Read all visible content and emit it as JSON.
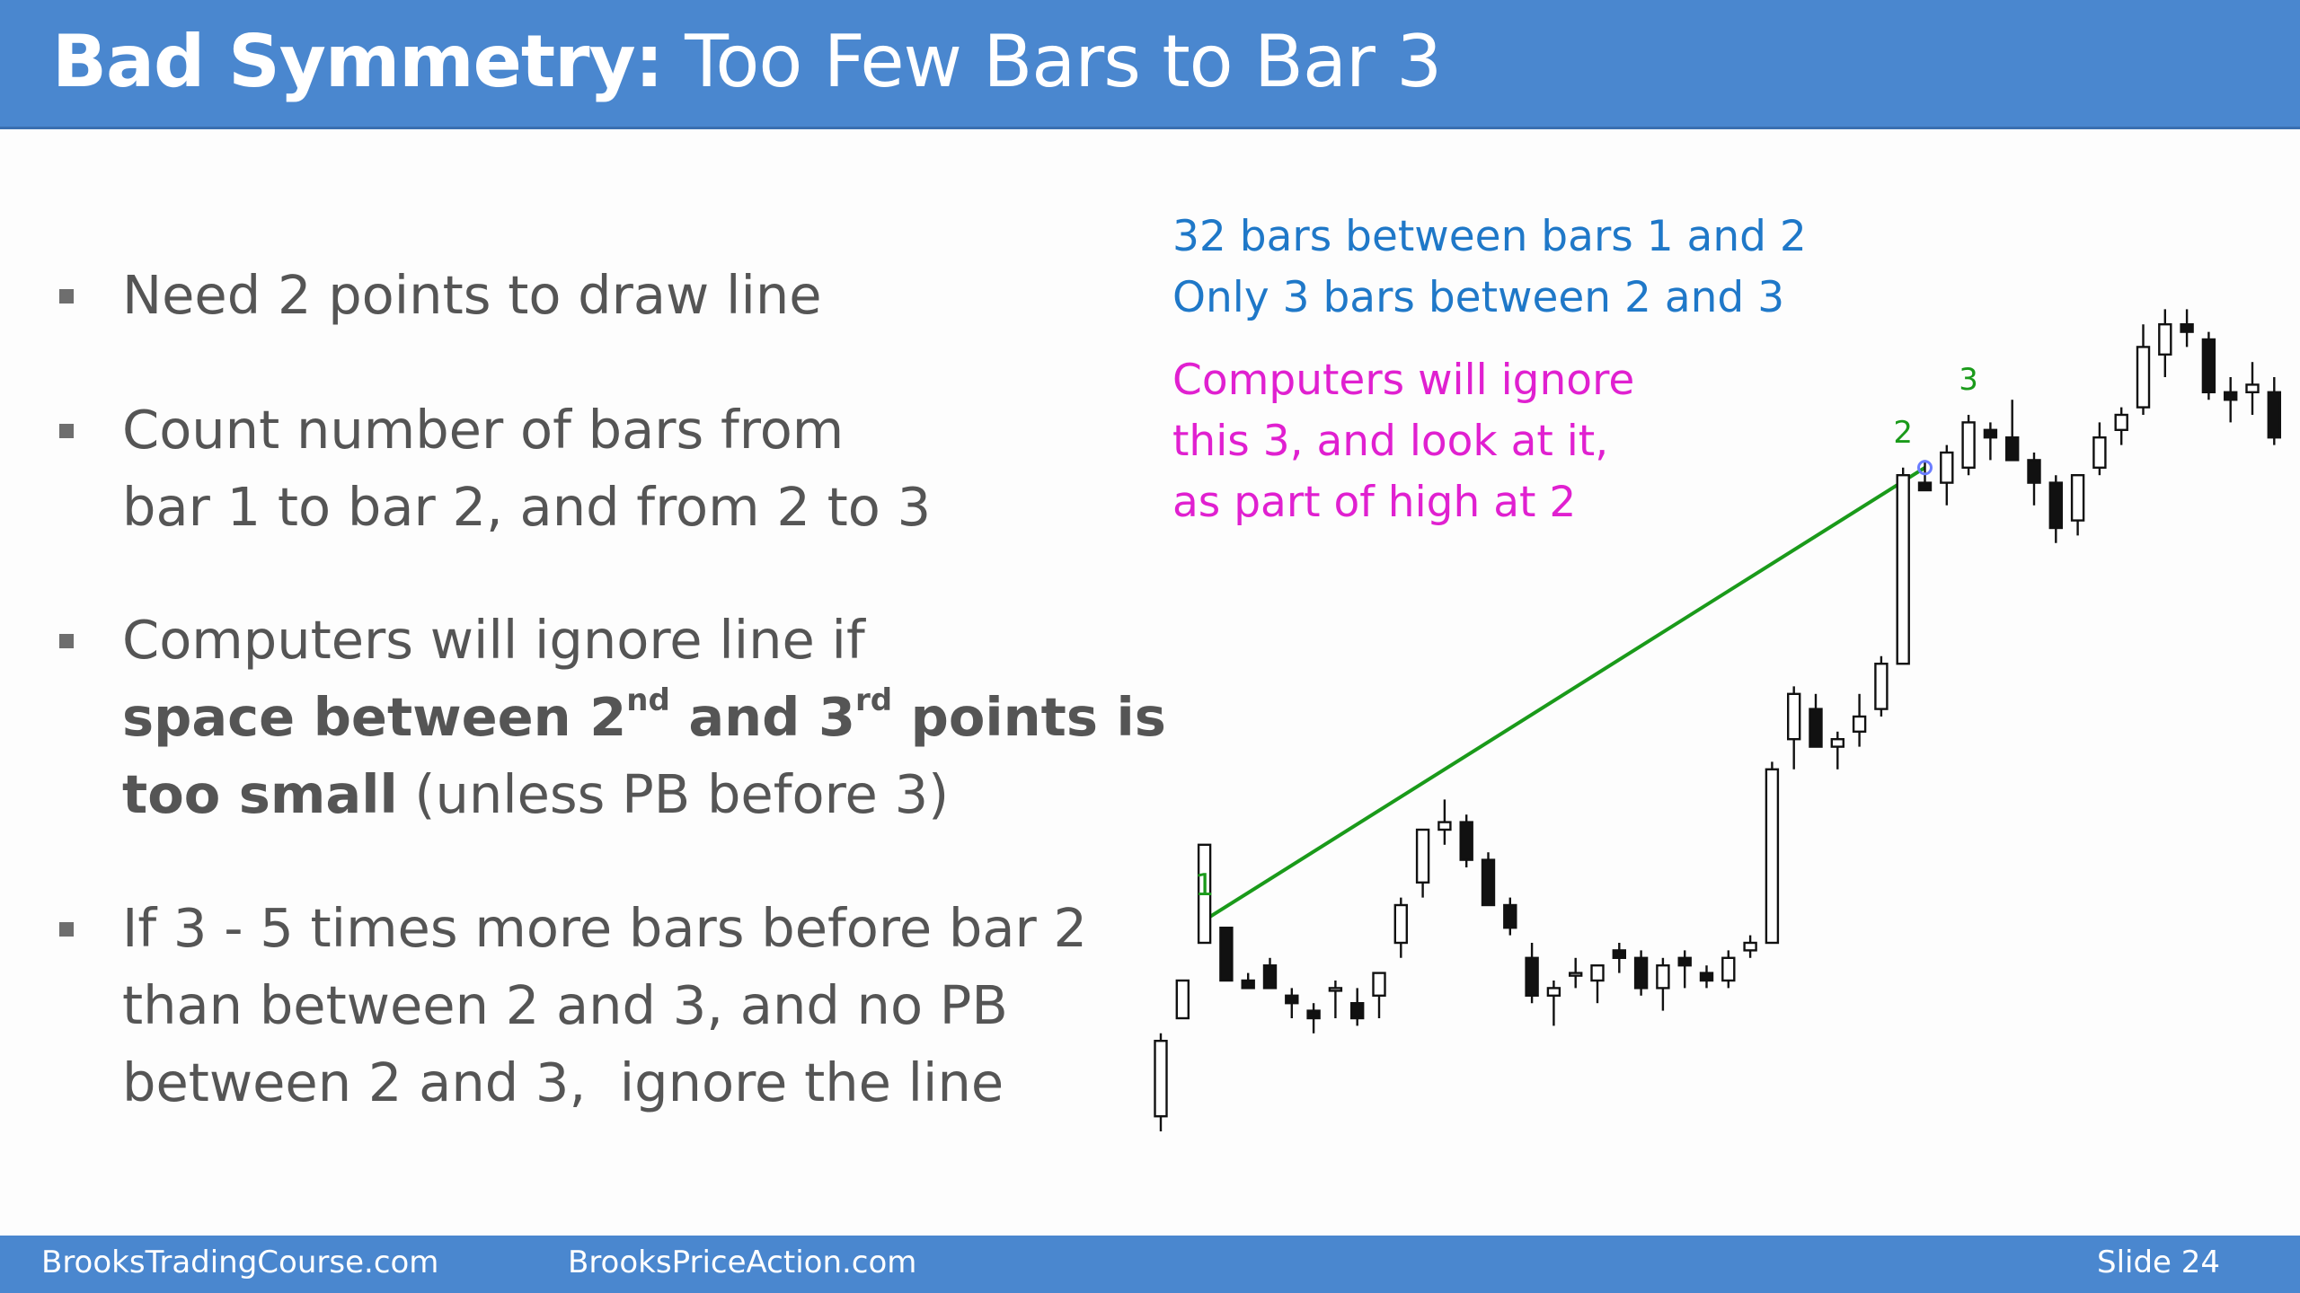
{
  "header": {
    "title_bold": "Bad Symmetry:",
    "title_rest": "Too Few Bars to Bar 3"
  },
  "bullets": [
    {
      "lines": [
        "Need 2 points to draw line"
      ]
    },
    {
      "lines": [
        "Count number of bars from",
        "bar 1 to bar 2, and from 2 to 3"
      ]
    },
    {
      "line1": "Computers will ignore line if",
      "bold_a": "space between 2",
      "sup_nd": "nd",
      "bold_b": " and 3",
      "sup_rd": "rd",
      "bold_c": " points is",
      "bold_d": "too small",
      "rest_d": " (unless PB before 3)"
    },
    {
      "lines": [
        "If 3 - 5 times more bars before bar 2",
        "than between 2 and 3, and no PB",
        "between 2 and 3,  ignore the line"
      ]
    }
  ],
  "annotations": {
    "blue": [
      "32 bars between bars 1 and 2",
      "Only 3 bars between 2 and 3"
    ],
    "magenta": [
      "Computers will ignore",
      "this 3, and look at it,",
      "as part of high at 2"
    ]
  },
  "footer": {
    "left": "BrooksTradingCourse.com",
    "middle": "BrooksPriceAction.com",
    "right": "Slide  24"
  },
  "colors": {
    "header_bg": "#4a87cf",
    "annotation_blue": "#1f78c8",
    "annotation_magenta": "#e020d0",
    "trendline_green": "#1a9a1a",
    "bar_label_green": "#1a9a1a"
  },
  "chart_data": {
    "type": "candlestick",
    "title": "",
    "xlabel": "",
    "ylabel": "",
    "grid": false,
    "bars": [
      {
        "o": 2,
        "h": 0,
        "l": 13,
        "c": 12,
        "bull": true
      },
      {
        "o": 15,
        "h": 17,
        "l": 19,
        "c": 20,
        "bull": true
      },
      {
        "o": 25,
        "h": 28,
        "l": 38,
        "c": 38,
        "bull": true
      },
      {
        "o": 27,
        "h": 27,
        "l": 22,
        "c": 20,
        "bull": false
      },
      {
        "o": 20,
        "h": 21,
        "l": 19,
        "c": 19,
        "bull": false
      },
      {
        "o": 22,
        "h": 23,
        "l": 20,
        "c": 19,
        "bull": false
      },
      {
        "o": 18,
        "h": 19,
        "l": 15,
        "c": 17,
        "bull": false
      },
      {
        "o": 15,
        "h": 17,
        "l": 13,
        "c": 16,
        "bull": false
      },
      {
        "o": 19,
        "h": 20,
        "l": 15,
        "c": 19,
        "bull": true
      },
      {
        "o": 17,
        "h": 19,
        "l": 14,
        "c": 15,
        "bull": false
      },
      {
        "o": 18,
        "h": 20,
        "l": 15,
        "c": 21,
        "bull": true
      },
      {
        "o": 25,
        "h": 31,
        "l": 23,
        "c": 30,
        "bull": true
      },
      {
        "o": 33,
        "h": 40,
        "l": 31,
        "c": 40,
        "bull": true
      },
      {
        "o": 40,
        "h": 44,
        "l": 38,
        "c": 41,
        "bull": true
      },
      {
        "o": 41,
        "h": 42,
        "l": 35,
        "c": 36,
        "bull": false
      },
      {
        "o": 36,
        "h": 37,
        "l": 30,
        "c": 30,
        "bull": false
      },
      {
        "o": 30,
        "h": 31,
        "l": 26,
        "c": 27,
        "bull": false
      },
      {
        "o": 23,
        "h": 25,
        "l": 17,
        "c": 18,
        "bull": false
      },
      {
        "o": 18,
        "h": 20,
        "l": 14,
        "c": 19,
        "bull": true
      },
      {
        "o": 21,
        "h": 23,
        "l": 19,
        "c": 21,
        "bull": true
      },
      {
        "o": 20,
        "h": 22,
        "l": 17,
        "c": 22,
        "bull": true
      },
      {
        "o": 24,
        "h": 25,
        "l": 21,
        "c": 23,
        "bull": false
      },
      {
        "o": 23,
        "h": 24,
        "l": 18,
        "c": 19,
        "bull": false
      },
      {
        "o": 19,
        "h": 23,
        "l": 16,
        "c": 22,
        "bull": true
      },
      {
        "o": 23,
        "h": 24,
        "l": 19,
        "c": 22,
        "bull": false
      },
      {
        "o": 20,
        "h": 22,
        "l": 19,
        "c": 21,
        "bull": false
      },
      {
        "o": 20,
        "h": 24,
        "l": 19,
        "c": 23,
        "bull": true
      },
      {
        "o": 24,
        "h": 26,
        "l": 23,
        "c": 25,
        "bull": true
      },
      {
        "o": 25,
        "h": 49,
        "l": 25,
        "c": 48,
        "bull": true
      },
      {
        "o": 52,
        "h": 59,
        "l": 48,
        "c": 58,
        "bull": true
      },
      {
        "o": 56,
        "h": 58,
        "l": 51,
        "c": 51,
        "bull": false
      },
      {
        "o": 51,
        "h": 53,
        "l": 48,
        "c": 52,
        "bull": true
      },
      {
        "o": 53,
        "h": 58,
        "l": 51,
        "c": 55,
        "bull": true
      },
      {
        "o": 56,
        "h": 63,
        "l": 55,
        "c": 62,
        "bull": true
      },
      {
        "o": 62,
        "h": 88,
        "l": 62,
        "c": 87,
        "bull": true
      },
      {
        "o": 86,
        "h": 89,
        "l": 85,
        "c": 85,
        "bull": false
      },
      {
        "o": 86,
        "h": 91,
        "l": 83,
        "c": 90,
        "bull": true
      },
      {
        "o": 88,
        "h": 95,
        "l": 87,
        "c": 94,
        "bull": true
      },
      {
        "o": 93,
        "h": 94,
        "l": 89,
        "c": 92,
        "bull": false
      },
      {
        "o": 92,
        "h": 97,
        "l": 90,
        "c": 89,
        "bull": false
      },
      {
        "o": 89,
        "h": 90,
        "l": 83,
        "c": 86,
        "bull": false
      },
      {
        "o": 86,
        "h": 87,
        "l": 78,
        "c": 80,
        "bull": false
      },
      {
        "o": 81,
        "h": 87,
        "l": 79,
        "c": 87,
        "bull": true
      },
      {
        "o": 88,
        "h": 94,
        "l": 87,
        "c": 92,
        "bull": true
      },
      {
        "o": 93,
        "h": 96,
        "l": 91,
        "c": 95,
        "bull": true
      },
      {
        "o": 96,
        "h": 107,
        "l": 95,
        "c": 104,
        "bull": true
      },
      {
        "o": 103,
        "h": 109,
        "l": 100,
        "c": 107,
        "bull": true
      },
      {
        "o": 107,
        "h": 109,
        "l": 104,
        "c": 106,
        "bull": false
      },
      {
        "o": 105,
        "h": 106,
        "l": 97,
        "c": 98,
        "bull": false
      },
      {
        "o": 98,
        "h": 100,
        "l": 94,
        "c": 97,
        "bull": false
      },
      {
        "o": 98,
        "h": 102,
        "l": 95,
        "c": 99,
        "bull": true
      },
      {
        "o": 98,
        "h": 100,
        "l": 91,
        "c": 92,
        "bull": false
      }
    ],
    "labels": [
      {
        "text": "1",
        "bar": 2
      },
      {
        "text": "2",
        "bar": 34
      },
      {
        "text": "3",
        "bar": 37
      }
    ],
    "trendline": {
      "from_bar": 2,
      "from_price": 28,
      "to_bar": 35,
      "to_price": 88
    }
  }
}
